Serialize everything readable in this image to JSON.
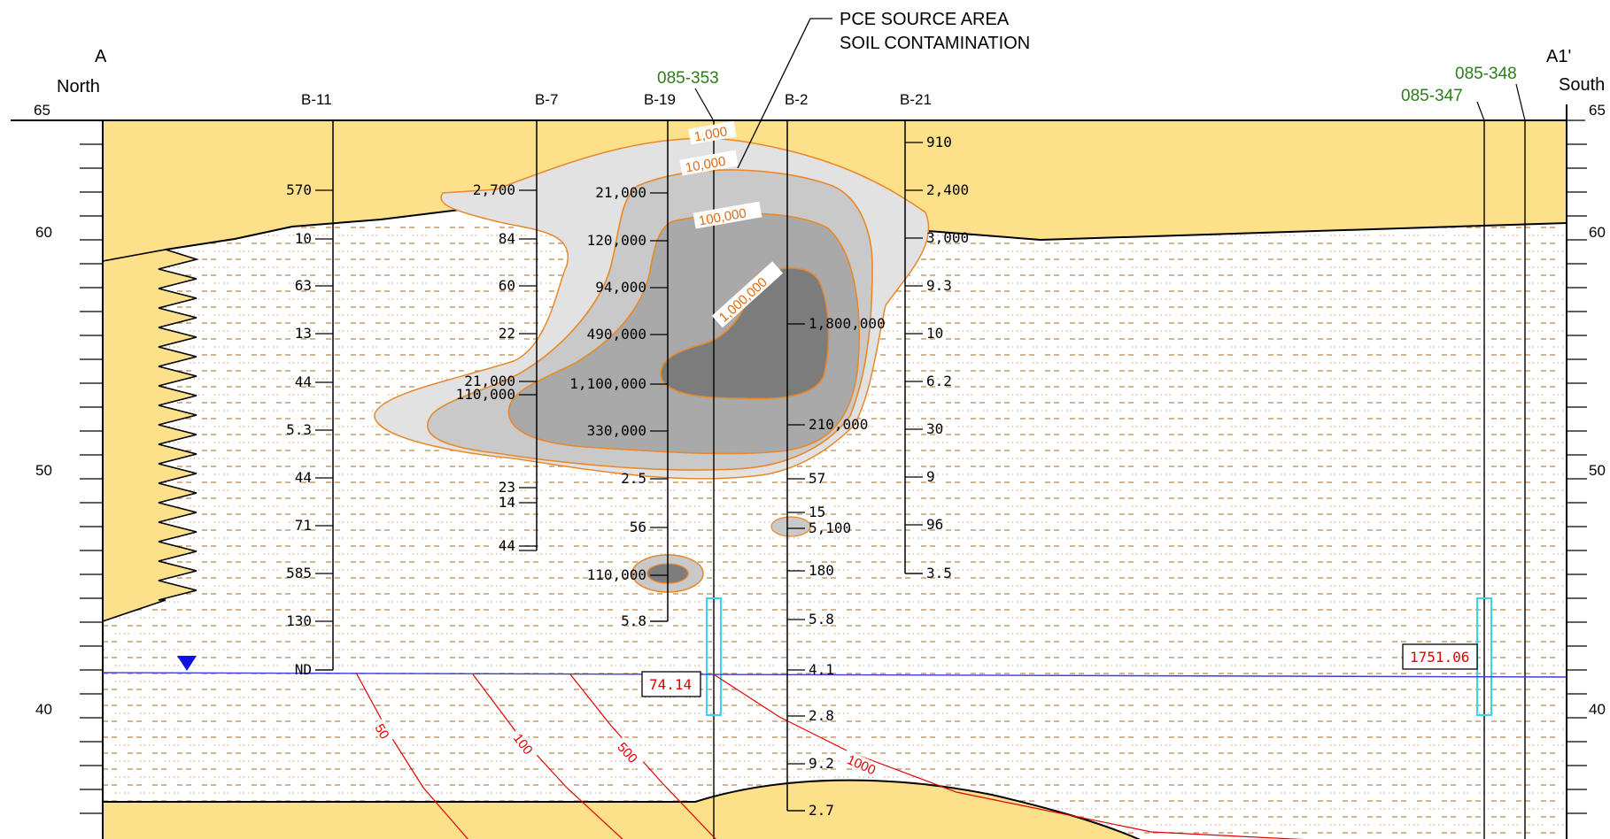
{
  "section": {
    "start_letter": "A",
    "start_direction": "North",
    "end_letter": "A1'",
    "end_direction": "South"
  },
  "elevation_axis": {
    "ticks": [
      "65",
      "60",
      "50",
      "40"
    ],
    "ticks_right": [
      "65",
      "60",
      "50",
      "40"
    ]
  },
  "callout": {
    "line1": "PCE SOURCE AREA",
    "line2": "SOIL CONTAMINATION"
  },
  "borings": [
    {
      "name": "B-11",
      "samples": [
        "570",
        "10",
        "63",
        "13",
        "44",
        "5.3",
        "44",
        "71",
        "585",
        "130",
        "ND"
      ]
    },
    {
      "name": "B-7",
      "samples": [
        "2,700",
        "84",
        "60",
        "22",
        "21,000",
        "110,000",
        "23",
        "14",
        "44"
      ]
    },
    {
      "name": "B-19",
      "samples": [
        "21,000",
        "120,000",
        "94,000",
        "490,000",
        "1,100,000",
        "330,000",
        "2.5",
        "56",
        "110,000",
        "5.8"
      ]
    },
    {
      "name": "B-2",
      "samples": [
        "1,800,000",
        "210,000",
        "57",
        "15",
        "5,100",
        "180",
        "5.8",
        "4.1",
        "2.8",
        "9.2",
        "2.7"
      ]
    },
    {
      "name": "B-21",
      "samples": [
        "910",
        "2,400",
        "3,000",
        "9.3",
        "10",
        "6.2",
        "30",
        "9",
        "96",
        "3.5"
      ]
    }
  ],
  "wells": [
    {
      "name": "085-353",
      "water_level": "74.14"
    },
    {
      "name": "085-347",
      "water_level": "1751.06"
    },
    {
      "name": "085-348"
    }
  ],
  "soil_contours": [
    "1,000",
    "10,000",
    "100,000",
    "1,000,000"
  ],
  "groundwater_contours": [
    "50",
    "100",
    "500",
    "1000"
  ],
  "colors": {
    "fill_sand": "#fde08a",
    "silt_dash": "#c89a6a",
    "soil_contour": "#e8882a",
    "shade_1": "#e2e2e2",
    "shade_2": "#c9c9c9",
    "shade_3": "#a9a9a9",
    "shade_4": "#7c7c7c",
    "groundwater_contour": "#e00000",
    "water_table": "#3a3adf",
    "water_marker": "#1010e0",
    "screen": "#36d8e8",
    "well_label": "#2e7d1a"
  }
}
